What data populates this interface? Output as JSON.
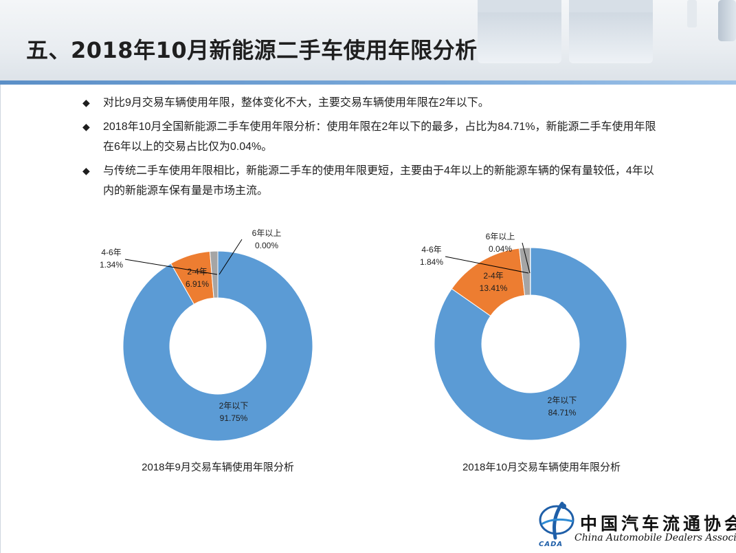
{
  "slide": {
    "title": "五、2018年10月新能源二手车使用年限分析"
  },
  "bullets": [
    {
      "text": "对比9月交易车辆使用年限，整体变化不大，主要交易车辆使用年限在2年以下。"
    },
    {
      "text": "2018年10月全国新能源二手车使用年限分析：使用年限在2年以下的最多，占比为84.71%，新能源二手车使用年限在6年以上的交易占比仅为0.04%。"
    },
    {
      "text": "与传统二手车使用年限相比，新能源二手车的使用年限更短，主要由于4年以上的新能源车辆的保有量较低，4年以内的新能源车保有量是市场主流。"
    }
  ],
  "chart_data": [
    {
      "type": "pie",
      "variant": "donut",
      "title": "2018年9月交易车辆使用年限分析",
      "categories": [
        "2年以下",
        "2-4年",
        "4-6年",
        "6年以上"
      ],
      "values": [
        91.75,
        6.91,
        1.34,
        0.0
      ],
      "value_labels": [
        "91.75%",
        "6.91%",
        "1.34%",
        "0.00%"
      ],
      "colors": [
        "#5b9bd5",
        "#ed7d31",
        "#a5a5a5",
        "#ffc000"
      ],
      "legend": "none"
    },
    {
      "type": "pie",
      "variant": "donut",
      "title": "2018年10月交易车辆使用年限分析",
      "categories": [
        "2年以下",
        "2-4年",
        "4-6年",
        "6年以上"
      ],
      "values": [
        84.71,
        13.41,
        1.84,
        0.04
      ],
      "value_labels": [
        "84.71%",
        "13.41%",
        "1.84%",
        "0.04%"
      ],
      "colors": [
        "#5b9bd5",
        "#ed7d31",
        "#a5a5a5",
        "#ffc000"
      ],
      "legend": "none"
    }
  ],
  "logo": {
    "name_cn": "中国汽车流通协会",
    "name_en": "China Automobile Dealers Association",
    "abbr": "CADA"
  },
  "colors": {
    "accent": "#5b8fc7"
  }
}
